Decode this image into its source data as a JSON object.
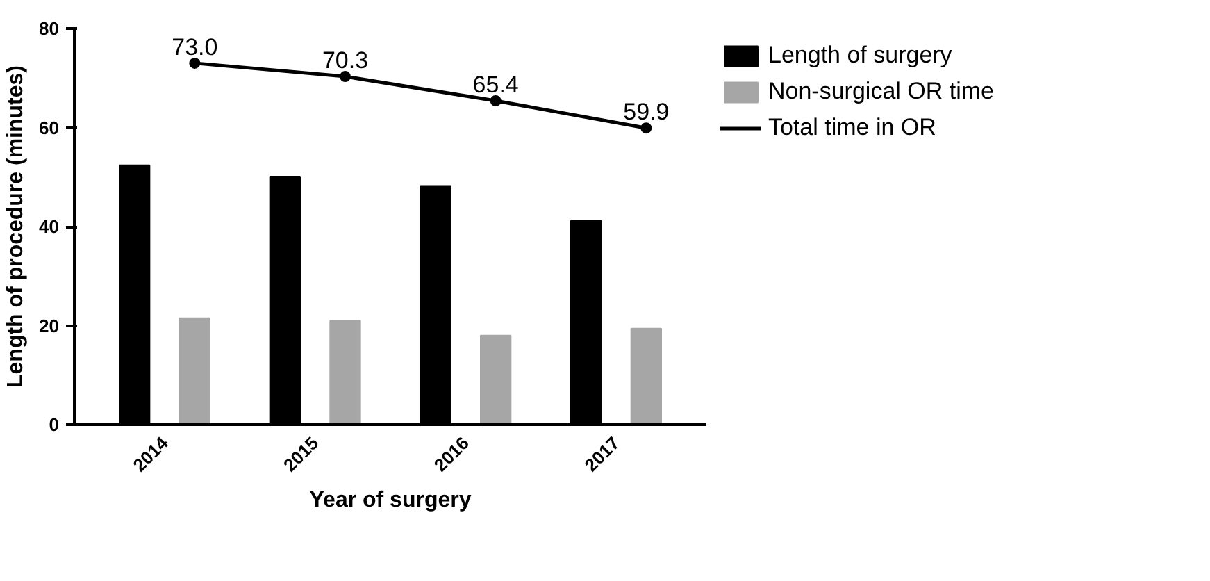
{
  "chart_data": {
    "type": "bar",
    "xlabel": "Year of surgery",
    "ylabel": "Length of procedure (minutes)",
    "categories": [
      "2014",
      "2015",
      "2016",
      "2017"
    ],
    "series": [
      {
        "name": "Length of surgery",
        "color": "#000000",
        "values": [
          52.4,
          50.1,
          48.2,
          41.2
        ]
      },
      {
        "name": "Non-surgical OR time",
        "color": "#a6a6a6",
        "values": [
          21.5,
          21.0,
          18.0,
          19.4
        ]
      },
      {
        "name": "Total time in OR",
        "color": "#000000",
        "type": "line",
        "marker": "circle",
        "values": [
          73.0,
          70.3,
          65.4,
          59.9
        ],
        "value_labels": [
          "73.0",
          "70.3",
          "65.4",
          "59.9"
        ]
      }
    ],
    "ylim": [
      0,
      80
    ],
    "yticks": [
      0,
      20,
      40,
      60,
      80
    ],
    "grid": false,
    "legend": "right"
  }
}
